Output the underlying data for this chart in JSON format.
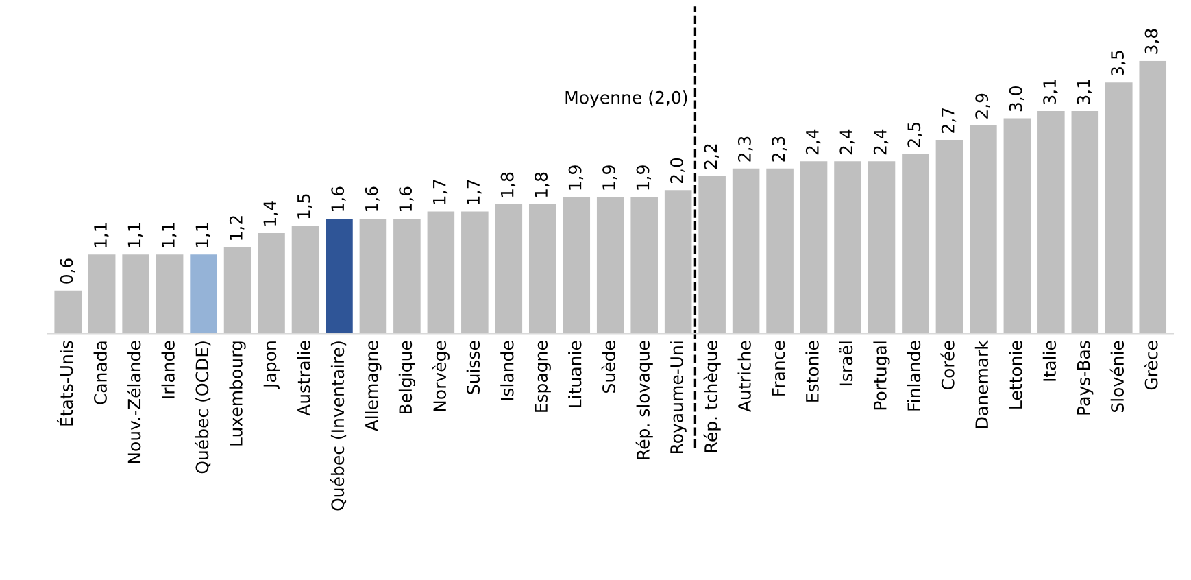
{
  "chart_data": {
    "type": "bar",
    "categories": [
      "États-Unis",
      "Canada",
      "Nouv.-Zélande",
      "Irlande",
      "Québec (OCDE)",
      "Luxembourg",
      "Japon",
      "Australie",
      "Québec (Inventaire)",
      "Allemagne",
      "Belgique",
      "Norvège",
      "Suisse",
      "Islande",
      "Espagne",
      "Lituanie",
      "Suède",
      "Rép. slovaque",
      "Royaume-Uni",
      "Rép. tchèque",
      "Autriche",
      "France",
      "Estonie",
      "Israël",
      "Portugal",
      "Finlande",
      "Corée",
      "Danemark",
      "Lettonie",
      "Italie",
      "Pays-Bas",
      "Slovénie",
      "Grèce"
    ],
    "values": [
      0.6,
      1.1,
      1.1,
      1.1,
      1.1,
      1.2,
      1.4,
      1.5,
      1.6,
      1.6,
      1.6,
      1.7,
      1.7,
      1.8,
      1.8,
      1.9,
      1.9,
      1.9,
      2.0,
      2.2,
      2.3,
      2.3,
      2.4,
      2.4,
      2.4,
      2.5,
      2.7,
      2.9,
      3.0,
      3.1,
      3.1,
      3.5,
      3.8
    ],
    "value_labels": [
      "0,6",
      "1,1",
      "1,1",
      "1,1",
      "1,1",
      "1,2",
      "1,4",
      "1,5",
      "1,6",
      "1,6",
      "1,6",
      "1,7",
      "1,7",
      "1,8",
      "1,8",
      "1,9",
      "1,9",
      "1,9",
      "2,0",
      "2,2",
      "2,3",
      "2,3",
      "2,4",
      "2,4",
      "2,4",
      "2,5",
      "2,7",
      "2,9",
      "3,0",
      "3,1",
      "3,1",
      "3,5",
      "3,8"
    ],
    "colors": [
      "#bfbfbf",
      "#bfbfbf",
      "#bfbfbf",
      "#bfbfbf",
      "#95b3d7",
      "#bfbfbf",
      "#bfbfbf",
      "#bfbfbf",
      "#2f5597",
      "#bfbfbf",
      "#bfbfbf",
      "#bfbfbf",
      "#bfbfbf",
      "#bfbfbf",
      "#bfbfbf",
      "#bfbfbf",
      "#bfbfbf",
      "#bfbfbf",
      "#bfbfbf",
      "#bfbfbf",
      "#bfbfbf",
      "#bfbfbf",
      "#bfbfbf",
      "#bfbfbf",
      "#bfbfbf",
      "#bfbfbf",
      "#bfbfbf",
      "#bfbfbf",
      "#bfbfbf",
      "#bfbfbf",
      "#bfbfbf",
      "#bfbfbf",
      "#bfbfbf"
    ],
    "annotations": [
      "Moyenne (2,0)"
    ],
    "grid": false,
    "legend": false
  }
}
